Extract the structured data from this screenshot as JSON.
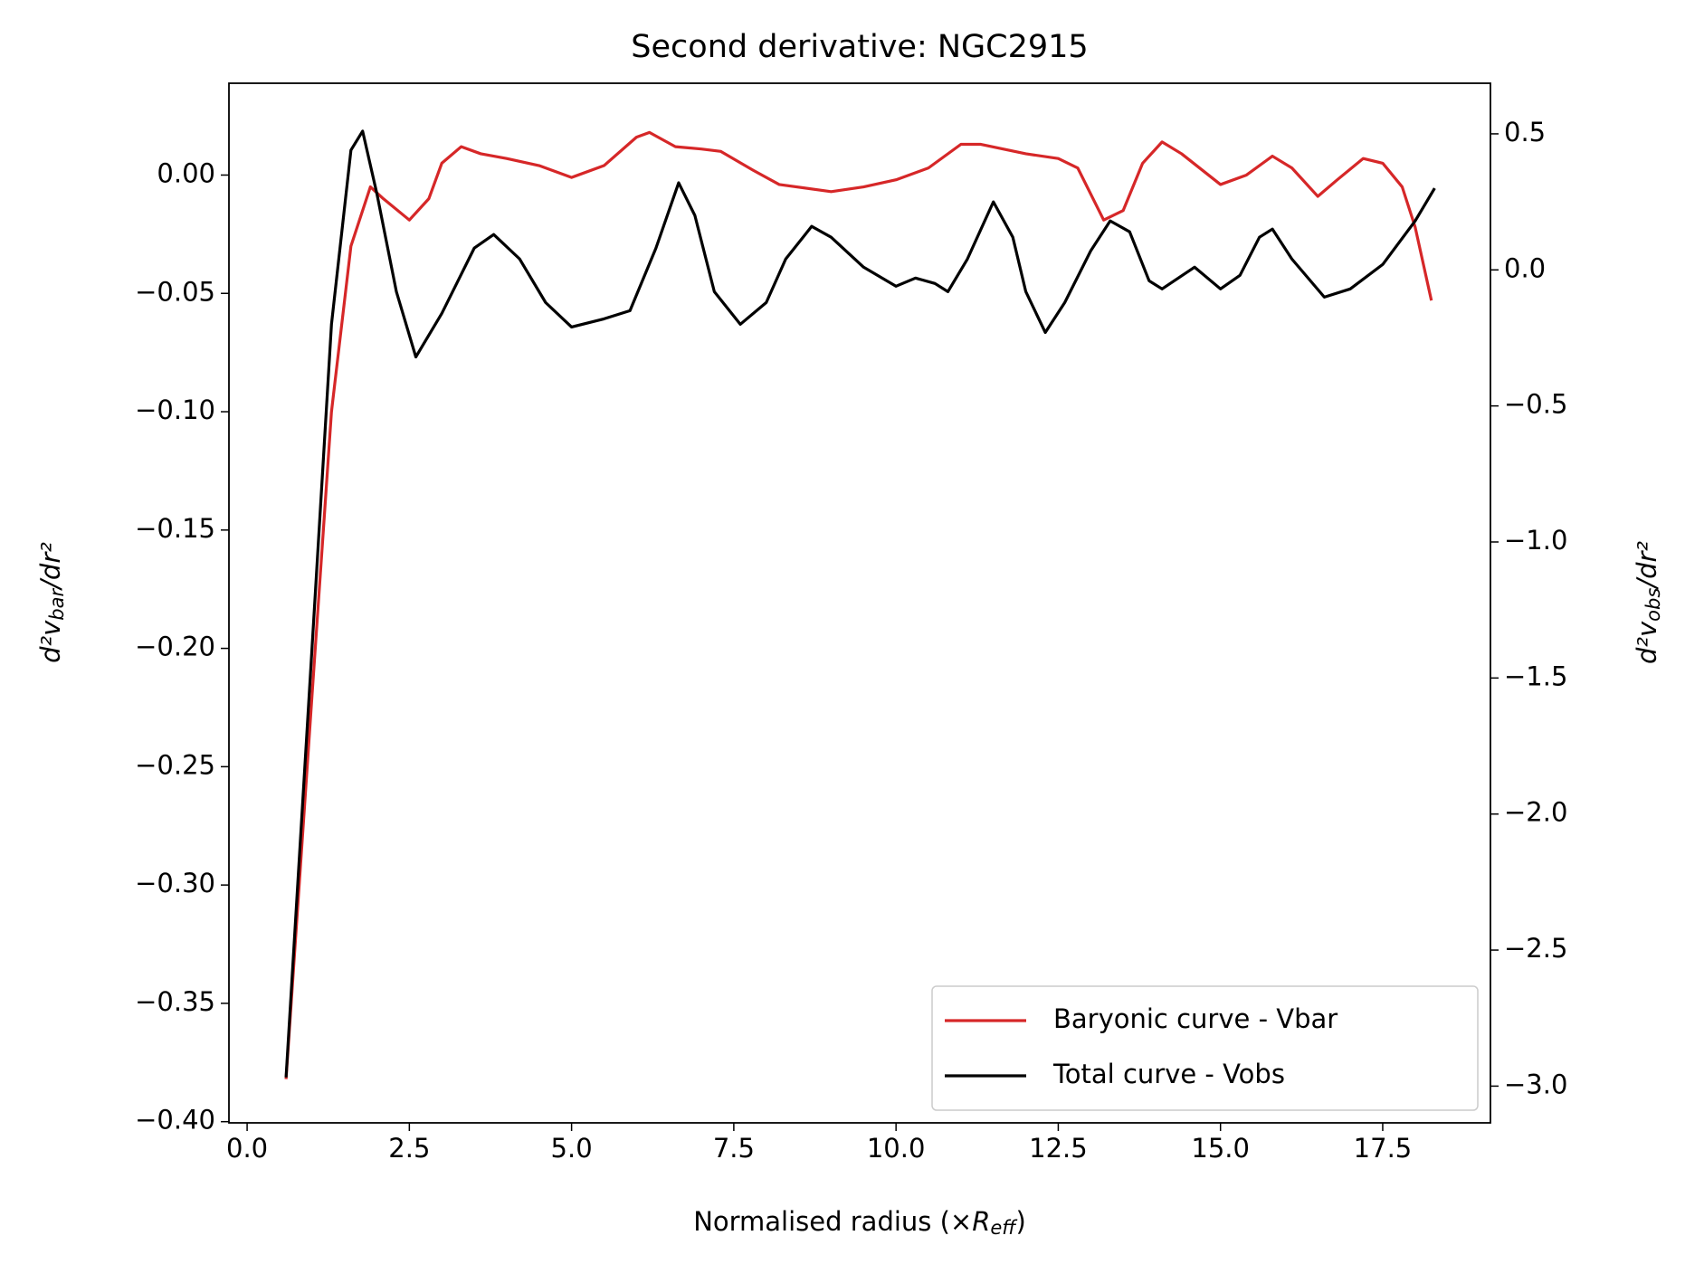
{
  "chart_data": {
    "type": "line",
    "title": "Second derivative: NGC2915",
    "xlabel": {
      "main": "Normalised radius (×",
      "var": "R",
      "sub": "eff",
      "tail": ")"
    },
    "ylabel": {
      "main": "d²v",
      "sub": "bar",
      "tail": "/dr²"
    },
    "y2label": {
      "main": "d²v",
      "sub": "obs",
      "tail": "/dr²"
    },
    "xlim": [
      -0.28,
      19.16
    ],
    "ylim": [
      -0.4005,
      0.0388
    ],
    "y2lim": [
      -3.135,
      0.686
    ],
    "xticks": [
      {
        "value": 0,
        "label": "0.0"
      },
      {
        "value": 2.5,
        "label": "2.5"
      },
      {
        "value": 5,
        "label": "5.0"
      },
      {
        "value": 7.5,
        "label": "7.5"
      },
      {
        "value": 10,
        "label": "10.0"
      },
      {
        "value": 12.5,
        "label": "12.5"
      },
      {
        "value": 15,
        "label": "15.0"
      },
      {
        "value": 17.5,
        "label": "17.5"
      }
    ],
    "yticks": [
      {
        "value": 0,
        "label": "0.00"
      },
      {
        "value": -0.05,
        "label": "−0.05"
      },
      {
        "value": -0.1,
        "label": "−0.10"
      },
      {
        "value": -0.15,
        "label": "−0.15"
      },
      {
        "value": -0.2,
        "label": "−0.20"
      },
      {
        "value": -0.25,
        "label": "−0.25"
      },
      {
        "value": -0.3,
        "label": "−0.30"
      },
      {
        "value": -0.35,
        "label": "−0.35"
      },
      {
        "value": -0.4,
        "label": "−0.40"
      }
    ],
    "y2ticks": [
      {
        "value": 0.5,
        "label": "0.5"
      },
      {
        "value": 0,
        "label": "0.0"
      },
      {
        "value": -0.5,
        "label": "−0.5"
      },
      {
        "value": -1,
        "label": "−1.0"
      },
      {
        "value": -1.5,
        "label": "−1.5"
      },
      {
        "value": -2,
        "label": "−2.0"
      },
      {
        "value": -2.5,
        "label": "−2.5"
      },
      {
        "value": -3,
        "label": "−3.0"
      }
    ],
    "legend": "lower right",
    "series": [
      {
        "name": "Baryonic curve - Vbar",
        "color": "#d62728",
        "axis": "y",
        "x": [
          0.6,
          1.0,
          1.3,
          1.6,
          1.9,
          2.1,
          2.5,
          2.8,
          3.0,
          3.3,
          3.6,
          4.0,
          4.5,
          5.0,
          5.5,
          6.0,
          6.2,
          6.6,
          7.0,
          7.3,
          7.8,
          8.2,
          9.0,
          9.5,
          10.0,
          10.5,
          11.0,
          11.3,
          12.0,
          12.5,
          12.8,
          13.2,
          13.5,
          13.8,
          14.1,
          14.4,
          15.0,
          15.4,
          15.8,
          16.1,
          16.5,
          16.8,
          17.2,
          17.5,
          17.8,
          18.0,
          18.25
        ],
        "values": [
          -0.382,
          -0.22,
          -0.1,
          -0.03,
          -0.005,
          -0.01,
          -0.019,
          -0.01,
          0.005,
          0.012,
          0.009,
          0.007,
          0.004,
          -0.001,
          0.004,
          0.016,
          0.018,
          0.012,
          0.011,
          0.01,
          0.002,
          -0.004,
          -0.007,
          -0.005,
          -0.002,
          0.003,
          0.013,
          0.013,
          0.009,
          0.007,
          0.003,
          -0.019,
          -0.015,
          0.005,
          0.014,
          0.009,
          -0.004,
          0.0,
          0.008,
          0.003,
          -0.009,
          -0.002,
          0.007,
          0.005,
          -0.005,
          -0.022,
          -0.053
        ]
      },
      {
        "name": "Total curve - Vobs",
        "color": "#000000",
        "axis": "y2",
        "x": [
          0.6,
          1.0,
          1.3,
          1.6,
          1.78,
          2.0,
          2.3,
          2.6,
          3.0,
          3.5,
          3.8,
          4.2,
          4.6,
          5.0,
          5.5,
          5.9,
          6.3,
          6.65,
          6.9,
          7.2,
          7.6,
          8.0,
          8.3,
          8.7,
          9.0,
          9.5,
          10.0,
          10.3,
          10.6,
          10.8,
          11.1,
          11.5,
          11.8,
          12.0,
          12.3,
          12.6,
          13.0,
          13.3,
          13.6,
          13.9,
          14.1,
          14.6,
          15.0,
          15.3,
          15.6,
          15.8,
          16.1,
          16.6,
          17.0,
          17.5,
          18.0,
          18.3
        ],
        "values": [
          -2.968,
          -1.39,
          -0.2,
          0.44,
          0.51,
          0.28,
          -0.08,
          -0.32,
          -0.16,
          0.08,
          0.13,
          0.04,
          -0.12,
          -0.21,
          -0.18,
          -0.15,
          0.08,
          0.32,
          0.2,
          -0.08,
          -0.2,
          -0.12,
          0.04,
          0.16,
          0.12,
          0.01,
          -0.06,
          -0.03,
          -0.05,
          -0.08,
          0.04,
          0.25,
          0.12,
          -0.08,
          -0.23,
          -0.12,
          0.07,
          0.18,
          0.14,
          -0.04,
          -0.07,
          0.01,
          -0.07,
          -0.02,
          0.12,
          0.15,
          0.04,
          -0.1,
          -0.07,
          0.02,
          0.18,
          0.3
        ]
      }
    ]
  }
}
